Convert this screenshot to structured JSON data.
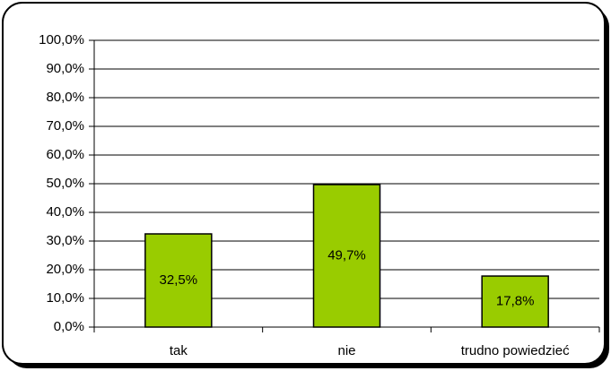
{
  "chart_data": {
    "type": "bar",
    "categories": [
      "tak",
      "nie",
      "trudno powiedzieć"
    ],
    "values": [
      32.5,
      49.7,
      17.8
    ],
    "value_labels": [
      "32,5%",
      "49,7%",
      "17,8%"
    ],
    "color": "#99cc00",
    "ylim": [
      0,
      100
    ],
    "yticks": [
      {
        "value": 0,
        "label": "0,0%"
      },
      {
        "value": 10,
        "label": "10,0%"
      },
      {
        "value": 20,
        "label": "20,0%"
      },
      {
        "value": 30,
        "label": "30,0%"
      },
      {
        "value": 40,
        "label": "40,0%"
      },
      {
        "value": 50,
        "label": "50,0%"
      },
      {
        "value": 60,
        "label": "60,0%"
      },
      {
        "value": 70,
        "label": "70,0%"
      },
      {
        "value": 80,
        "label": "80,0%"
      },
      {
        "value": 90,
        "label": "90,0%"
      },
      {
        "value": 100,
        "label": "100,0%"
      }
    ],
    "grid": true
  }
}
